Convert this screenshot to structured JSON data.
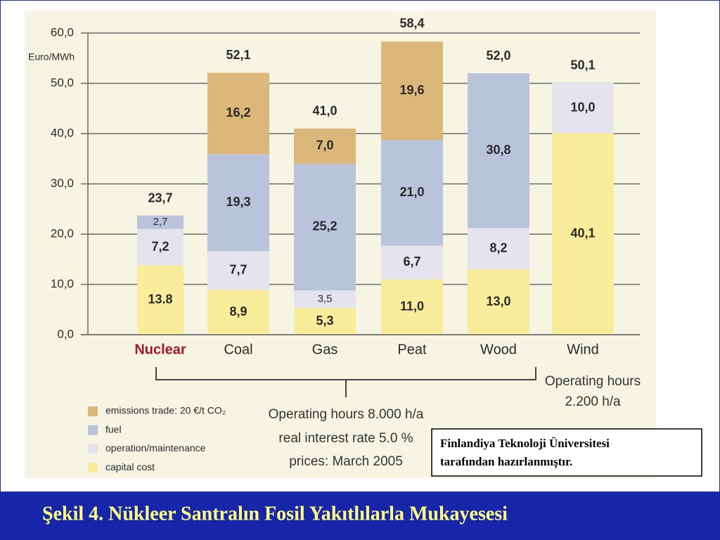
{
  "chart_data": {
    "type": "stacked_bar",
    "y_label": "Euro/MWh",
    "categories": [
      "Nuclear",
      "Coal",
      "Gas",
      "Peat",
      "Wood",
      "Wind"
    ],
    "highlight_index": 0,
    "highlight_color": "#a3172a",
    "series": [
      {
        "name": "capital cost",
        "color": "#f9ec9b",
        "values": [
          13.8,
          8.9,
          5.3,
          11.0,
          13.0,
          40.1
        ],
        "value_labels": [
          "13.8",
          "8,9",
          "5,3",
          "11,0",
          "13,0",
          "40,1"
        ]
      },
      {
        "name": "operation/maintenance",
        "color": "#e4e3ee",
        "values": [
          7.2,
          7.7,
          3.5,
          6.7,
          8.2,
          10.0
        ],
        "value_labels": [
          "7,2",
          "7,7",
          "3,5",
          "6,7",
          "8,2",
          "10,0"
        ]
      },
      {
        "name": "fuel",
        "color": "#bac3dc",
        "values": [
          2.7,
          19.3,
          25.2,
          21.0,
          30.8,
          null
        ],
        "value_labels": [
          "2,7",
          "19,3",
          "25,2",
          "21,0",
          "30,8",
          null
        ]
      },
      {
        "name": "emissions trade: 20 €/t CO₂",
        "color": "#dcb77a",
        "values": [
          null,
          16.2,
          7.0,
          19.6,
          null,
          null
        ],
        "value_labels": [
          null,
          "16,2",
          "7,0",
          "19,6",
          null,
          null
        ]
      }
    ],
    "totals": [
      23.7,
      52.1,
      41.0,
      58.4,
      52.0,
      50.1
    ],
    "total_labels": [
      "23,7",
      "52,1",
      "41,0",
      "58,4",
      "52,0",
      "50,1"
    ],
    "ylim": [
      0,
      60
    ],
    "yticks": [
      {
        "value": 0,
        "label": "0,0"
      },
      {
        "value": 10,
        "label": "10,0"
      },
      {
        "value": 20,
        "label": "20,0"
      },
      {
        "value": 30,
        "label": "30,0"
      },
      {
        "value": 40,
        "label": "40,0"
      },
      {
        "value": 50,
        "label": "50,0"
      },
      {
        "value": 60,
        "label": "60,0"
      }
    ],
    "grid": true,
    "annotations": [
      "Operating hours 8.000 h/a",
      "real interest rate 5.0 %",
      "prices: March 2005"
    ],
    "wind_annotations": [
      "Operating hours",
      "2.200 h/a"
    ]
  },
  "note": [
    "Finlandiya Teknoloji Üniversitesi",
    "tarafından hazırlanmıştır."
  ],
  "footer": "Şekil 4. Nükleer Santralın Fosil Yakıtlılarla Mukayesesi"
}
